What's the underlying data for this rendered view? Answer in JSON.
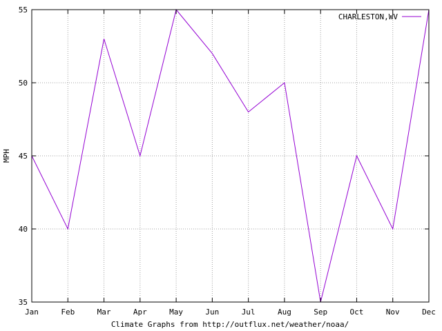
{
  "chart_data": {
    "type": "line",
    "title": "",
    "xlabel": "Climate Graphs from http://outflux.net/weather/noaa/",
    "ylabel": "MPH",
    "categories": [
      "Jan",
      "Feb",
      "Mar",
      "Apr",
      "May",
      "Jun",
      "Jul",
      "Aug",
      "Sep",
      "Oct",
      "Nov",
      "Dec"
    ],
    "series": [
      {
        "name": "CHARLESTON,WV",
        "color": "#9400d3",
        "values": [
          45,
          40,
          53,
          45,
          55,
          52,
          48,
          50,
          35,
          45,
          40,
          55
        ]
      }
    ],
    "yticks": [
      "35",
      "40",
      "45",
      "50",
      "55"
    ],
    "ylim": [
      35,
      55
    ],
    "grid": true,
    "legend_position": "top-right"
  }
}
